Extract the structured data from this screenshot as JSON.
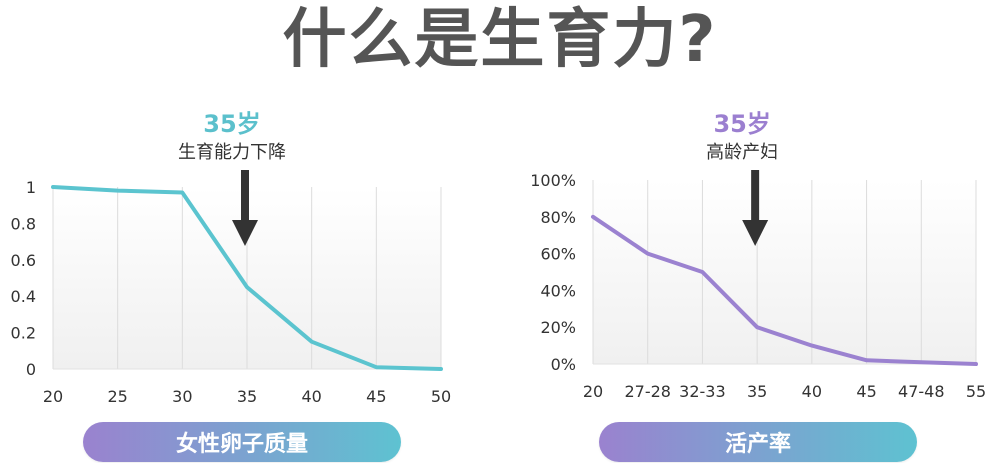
{
  "page": {
    "title": "什么是生育力?"
  },
  "chart_data": [
    {
      "type": "line",
      "x": [
        20,
        25,
        30,
        35,
        40,
        45,
        50
      ],
      "series": [
        {
          "values": [
            1.0,
            0.98,
            0.97,
            0.45,
            0.15,
            0.01,
            0.0
          ]
        }
      ],
      "xticks": [
        "20",
        "25",
        "30",
        "35",
        "40",
        "45",
        "50"
      ],
      "yticks": [
        "0",
        "0.2",
        "0.4",
        "0.6",
        "0.8",
        "1"
      ],
      "ylim": [
        0,
        1
      ],
      "xlim": [
        20,
        50
      ],
      "grid": "vertical",
      "color": "#5bc4cf",
      "annotation": {
        "x": 35,
        "value": "35岁",
        "text": "生育能力下降",
        "value_color": "#5bc0cc"
      },
      "label": "女性卵子质量"
    },
    {
      "type": "line",
      "categories": [
        "20",
        "27-28",
        "32-33",
        "35",
        "40",
        "45",
        "47-48",
        "55"
      ],
      "series": [
        {
          "values": [
            80,
            60,
            50,
            20,
            10,
            2,
            1,
            0
          ]
        }
      ],
      "yticks": [
        "0%",
        "20%",
        "40%",
        "60%",
        "80%",
        "100%"
      ],
      "ylim": [
        0,
        100
      ],
      "grid": "vertical",
      "color": "#9b82d0",
      "annotation": {
        "category": "35",
        "value": "35岁",
        "text": "高龄产妇",
        "value_color": "#9b7fd0"
      },
      "label": "活产率"
    }
  ]
}
